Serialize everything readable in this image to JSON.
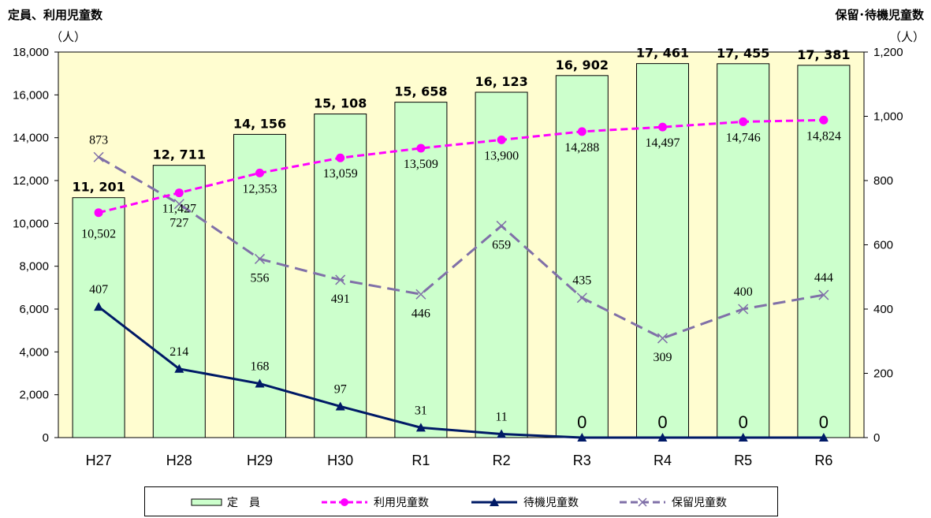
{
  "left_axis": {
    "title": "定員、利用児童数",
    "unit": "（人）",
    "range": [
      0,
      18000
    ],
    "ticks": [
      "0",
      "2,000",
      "4,000",
      "6,000",
      "8,000",
      "10,000",
      "12,000",
      "14,000",
      "16,000",
      "18,000"
    ]
  },
  "right_axis": {
    "title": "保留･待機児童数",
    "unit": "（人）",
    "range": [
      0,
      1200
    ],
    "ticks": [
      "0",
      "200",
      "400",
      "600",
      "800",
      "1,000",
      "1,200"
    ]
  },
  "legend": [
    {
      "key": "capacity",
      "label": "定　員"
    },
    {
      "key": "users",
      "label": "利用児童数"
    },
    {
      "key": "waiting",
      "label": "待機児童数"
    },
    {
      "key": "reserved",
      "label": "保留児童数"
    }
  ],
  "colors": {
    "plot_bg": "#fffdd0",
    "bar_fill": "#ccffcc",
    "users": "#ff00ff",
    "waiting": "#001a66",
    "reserved": "#8070a8"
  },
  "chart_data": {
    "type": "bar",
    "categories": [
      "H27",
      "H28",
      "H29",
      "H30",
      "R1",
      "R2",
      "R3",
      "R4",
      "R5",
      "R6"
    ],
    "series": [
      {
        "name": "定　員",
        "type": "bar",
        "axis": "left",
        "values": [
          11201,
          12711,
          14156,
          15108,
          15658,
          16123,
          16902,
          17461,
          17455,
          17381
        ],
        "labels": [
          "11, 201",
          "12, 711",
          "14, 156",
          "15, 108",
          "15, 658",
          "16, 123",
          "16, 902",
          "17, 461",
          "17, 455",
          "17, 381"
        ]
      },
      {
        "name": "利用児童数",
        "type": "line",
        "axis": "left",
        "values": [
          10502,
          11427,
          12353,
          13059,
          13509,
          13900,
          14288,
          14497,
          14746,
          14824
        ],
        "labels": [
          "10,502",
          "11,427",
          "12,353",
          "13,059",
          "13,509",
          "13,900",
          "14,288",
          "14,497",
          "14,746",
          "14,824"
        ]
      },
      {
        "name": "待機児童数",
        "type": "line",
        "axis": "right",
        "values": [
          407,
          214,
          168,
          97,
          31,
          11,
          0,
          0,
          0,
          0
        ],
        "labels": [
          "407",
          "214",
          "168",
          "97",
          "31",
          "11",
          "0",
          "0",
          "0",
          "0"
        ]
      },
      {
        "name": "保留児童数",
        "type": "line",
        "axis": "right",
        "values": [
          873,
          727,
          556,
          491,
          446,
          659,
          435,
          309,
          400,
          444
        ],
        "labels": [
          "873",
          "727",
          "556",
          "491",
          "446",
          "659",
          "435",
          "309",
          "400",
          "444"
        ]
      }
    ],
    "grid": false,
    "legend_position": "bottom"
  }
}
